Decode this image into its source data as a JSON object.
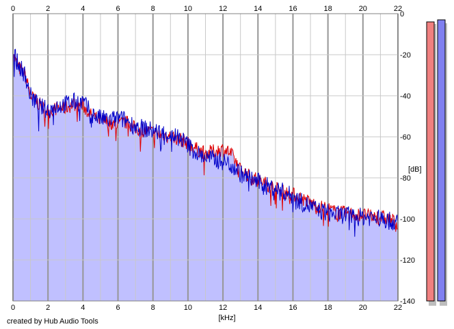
{
  "footer": {
    "credit": "created by Hub Audio Tools"
  },
  "colors": {
    "fill": "#c0c0ff",
    "left_channel": "#e00000",
    "right_channel": "#0000c8",
    "grid_minor": "#c8c8c8",
    "grid_major": "#969696",
    "meter_left": "#f08080",
    "meter_right": "#8080f0"
  },
  "chart_data": {
    "type": "line",
    "title": "",
    "xlabel": "[kHz]",
    "ylabel": "[dB]",
    "xlim": [
      0,
      22
    ],
    "ylim": [
      -140,
      0
    ],
    "x_ticks": [
      "0",
      "2",
      "4",
      "6",
      "8",
      "10",
      "12",
      "14",
      "16",
      "18",
      "20",
      "22"
    ],
    "y_ticks": [
      "0",
      "-20",
      "-40",
      "-60",
      "-80",
      "-100",
      "-120",
      "-140"
    ],
    "grid": true,
    "series": [
      {
        "x": [
          0,
          0.1,
          0.2,
          0.3,
          0.5,
          0.7,
          0.8,
          1,
          1.5,
          2,
          2.5,
          3,
          3.5,
          4,
          4.5,
          5,
          5.5,
          6,
          6.5,
          7,
          7.5,
          8,
          8.5,
          9,
          9.5,
          10,
          10.5,
          11,
          11.5,
          12,
          12.3,
          12.6,
          13,
          13.5,
          14,
          14.5,
          15,
          15.5,
          16,
          16.5,
          17,
          17.5,
          18,
          18.5,
          19,
          19.5,
          20,
          20.5,
          21,
          21.5,
          22
        ],
        "y": [
          -20,
          -22,
          -24,
          -26,
          -28,
          -30,
          -33,
          -40,
          -44,
          -48,
          -46,
          -46,
          -44,
          -45,
          -50,
          -52,
          -53,
          -54,
          -53,
          -56,
          -57,
          -58,
          -59,
          -60,
          -61,
          -63,
          -66,
          -68,
          -67,
          -66,
          -67,
          -70,
          -76,
          -79,
          -81,
          -83,
          -85,
          -87,
          -88,
          -90,
          -92,
          -94,
          -95,
          -97,
          -97,
          -98,
          -98,
          -99,
          -99,
          -100,
          -102
        ]
      },
      {
        "x": [
          0,
          0.1,
          0.2,
          0.3,
          0.5,
          0.7,
          0.8,
          1,
          1.5,
          2,
          2.5,
          3,
          3.5,
          4,
          4.5,
          5,
          5.5,
          6,
          6.5,
          7,
          7.5,
          8,
          8.5,
          9,
          9.5,
          10,
          10.5,
          11,
          11.5,
          12,
          12.3,
          12.6,
          13,
          13.5,
          14,
          14.5,
          15,
          15.5,
          16,
          16.5,
          17,
          17.5,
          18,
          18.5,
          19,
          19.5,
          20,
          20.5,
          21,
          21.5,
          22
        ],
        "y": [
          -19,
          -20,
          -23,
          -25,
          -27,
          -30,
          -34,
          -40,
          -45,
          -47,
          -45,
          -44,
          -43,
          -43,
          -49,
          -51,
          -52,
          -51,
          -52,
          -55,
          -56,
          -57,
          -58,
          -59,
          -60,
          -64,
          -68,
          -70,
          -71,
          -72,
          -73,
          -74,
          -78,
          -80,
          -82,
          -84,
          -85,
          -87,
          -89,
          -92,
          -94,
          -96,
          -97,
          -98,
          -98,
          -99,
          -99,
          -99,
          -100,
          -101,
          -102
        ]
      }
    ],
    "meters": {
      "left_top_db": -4,
      "right_top_db": -3
    }
  }
}
